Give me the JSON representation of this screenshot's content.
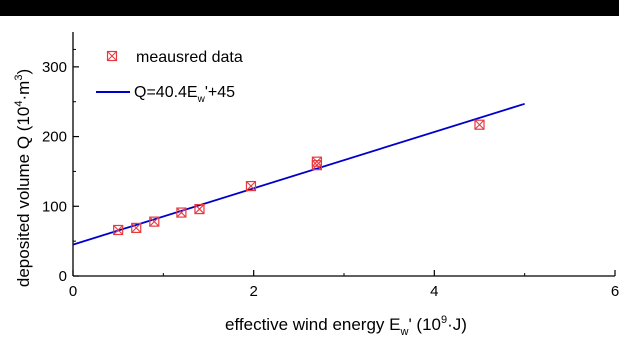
{
  "chart_data": {
    "type": "scatter",
    "xlabel": {
      "main": "effective wind energy E",
      "sub": "w",
      "mid": "' (10",
      "sup": "9",
      "end": "·J)"
    },
    "ylabel": {
      "main": "deposited volume Q (10",
      "sup": "4",
      "mid": "·m",
      "sup2": "3",
      "end": ")"
    },
    "xlim": [
      0,
      6
    ],
    "ylim": [
      0,
      350
    ],
    "x_ticks": [
      0,
      2,
      4,
      6
    ],
    "y_ticks": [
      0,
      100,
      200,
      300
    ],
    "x_tick_labels": [
      "0",
      "2",
      "4",
      "6"
    ],
    "y_tick_labels": [
      "0",
      "100",
      "200",
      "300"
    ],
    "grid": false,
    "legend_position": "top-left",
    "series": [
      {
        "name": "meausred data",
        "kind": "points",
        "marker": "boxed-x",
        "color": "#e8393f",
        "x": [
          0.5,
          0.7,
          0.9,
          1.2,
          1.4,
          1.97,
          2.7,
          2.7,
          4.5
        ],
        "y": [
          66,
          69,
          78,
          91,
          96,
          129,
          164,
          159,
          217
        ]
      },
      {
        "name_parts": {
          "main": "Q=40.4E",
          "sub": "w",
          "end": "'+45"
        },
        "kind": "line",
        "color": "#0000cc",
        "slope": 40.4,
        "intercept": 45,
        "x_range": [
          0,
          5
        ]
      }
    ]
  }
}
